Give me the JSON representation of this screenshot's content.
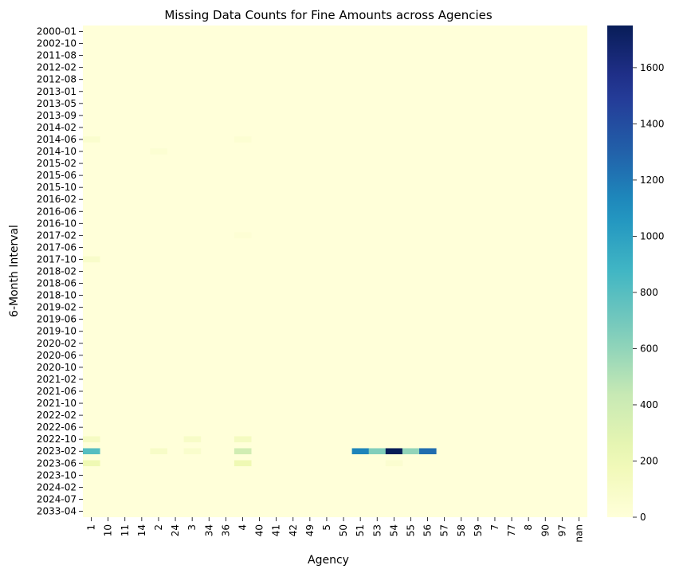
{
  "chart_data": {
    "type": "heatmap",
    "title": "Missing Data Counts for Fine Amounts across Agencies",
    "xlabel": "Agency",
    "ylabel": "6-Month Interval",
    "x_categories": [
      "1",
      "10",
      "11",
      "14",
      "2",
      "24",
      "3",
      "34",
      "36",
      "4",
      "40",
      "41",
      "42",
      "49",
      "5",
      "50",
      "51",
      "53",
      "54",
      "55",
      "56",
      "57",
      "58",
      "59",
      "7",
      "77",
      "8",
      "90",
      "97",
      "nan"
    ],
    "y_tick_labels": [
      "2000-01",
      "2002-10",
      "2011-08",
      "2012-02",
      "2012-08",
      "2013-01",
      "2013-05",
      "2013-09",
      "2014-02",
      "2014-06",
      "2014-10",
      "2015-02",
      "2015-06",
      "2015-10",
      "2016-02",
      "2016-06",
      "2016-10",
      "2017-02",
      "2017-06",
      "2017-10",
      "2018-02",
      "2018-06",
      "2018-10",
      "2019-02",
      "2019-06",
      "2019-10",
      "2020-02",
      "2020-06",
      "2020-10",
      "2021-02",
      "2021-06",
      "2021-10",
      "2022-02",
      "2022-06",
      "2022-10",
      "2023-02",
      "2023-06",
      "2023-10",
      "2024-02",
      "2024-07",
      "2033-04"
    ],
    "colorbar": {
      "min": 0,
      "max": 1750,
      "ticks": [
        0,
        200,
        400,
        600,
        800,
        1000,
        1200,
        1400,
        1600
      ],
      "colormap": "YlGnBu"
    },
    "default_value": 0,
    "cells": [
      {
        "y": "2014-06",
        "x": "1",
        "value": 60
      },
      {
        "y": "2014-06",
        "x": "4",
        "value": 40
      },
      {
        "y": "2014-10",
        "x": "2",
        "value": 40
      },
      {
        "y": "2017-02",
        "x": "4",
        "value": 30
      },
      {
        "y": "2017-10",
        "x": "1",
        "value": 80
      },
      {
        "y": "2022-10",
        "x": "3",
        "value": 100
      },
      {
        "y": "2022-10",
        "x": "1",
        "value": 120
      },
      {
        "y": "2022-10",
        "x": "4",
        "value": 130
      },
      {
        "y": "2023-02",
        "x": "1",
        "value": 800
      },
      {
        "y": "2023-02",
        "x": "2",
        "value": 100
      },
      {
        "y": "2023-02",
        "x": "3",
        "value": 70
      },
      {
        "y": "2023-02",
        "x": "4",
        "value": 380
      },
      {
        "y": "2023-02",
        "x": "51",
        "value": 1150
      },
      {
        "y": "2023-02",
        "x": "53",
        "value": 650
      },
      {
        "y": "2023-02",
        "x": "54",
        "value": 1750
      },
      {
        "y": "2023-02",
        "x": "55",
        "value": 600
      },
      {
        "y": "2023-02",
        "x": "56",
        "value": 1250
      },
      {
        "y": "2023-06",
        "x": "1",
        "value": 200
      },
      {
        "y": "2023-06",
        "x": "4",
        "value": 200
      },
      {
        "y": "2023-06",
        "x": "54",
        "value": 50
      }
    ]
  }
}
